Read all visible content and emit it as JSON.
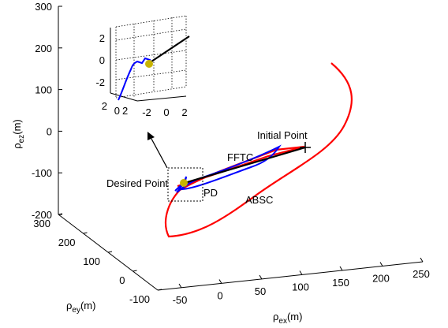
{
  "chart_data": {
    "type": "line",
    "projection": "3d",
    "grid": false,
    "axes": {
      "x": {
        "label_sym": "ρ",
        "label_sub": "ex",
        "label_unit": "(m)",
        "ticks": [
          "-50",
          "0",
          "50",
          "100",
          "150",
          "200",
          "250"
        ]
      },
      "y": {
        "label_sym": "ρ",
        "label_sub": "ey",
        "label_unit": "(m)",
        "ticks": [
          "-100",
          "0",
          "100",
          "200",
          "300"
        ]
      },
      "z": {
        "label_sym": "ρ",
        "label_sub": "ez",
        "label_unit": "(m)",
        "ticks": [
          "-200",
          "-100",
          "0",
          "100",
          "200",
          "300"
        ]
      }
    },
    "series": [
      {
        "name": "FFTC",
        "color": "#000000"
      },
      {
        "name": "PD",
        "color": "#0000ff"
      },
      {
        "name": "ABSC",
        "color": "#ff0000"
      }
    ],
    "annotations": {
      "initial_point": "Initial Point",
      "desired_point": "Desired Point"
    },
    "marker_color": "#c8b400",
    "inset": {
      "grid": true,
      "z_ticks": [
        "2",
        "0",
        "-2"
      ],
      "x_ticks": [
        "-2",
        "0",
        "2"
      ],
      "y_ticks": [
        "2",
        "0"
      ]
    }
  }
}
